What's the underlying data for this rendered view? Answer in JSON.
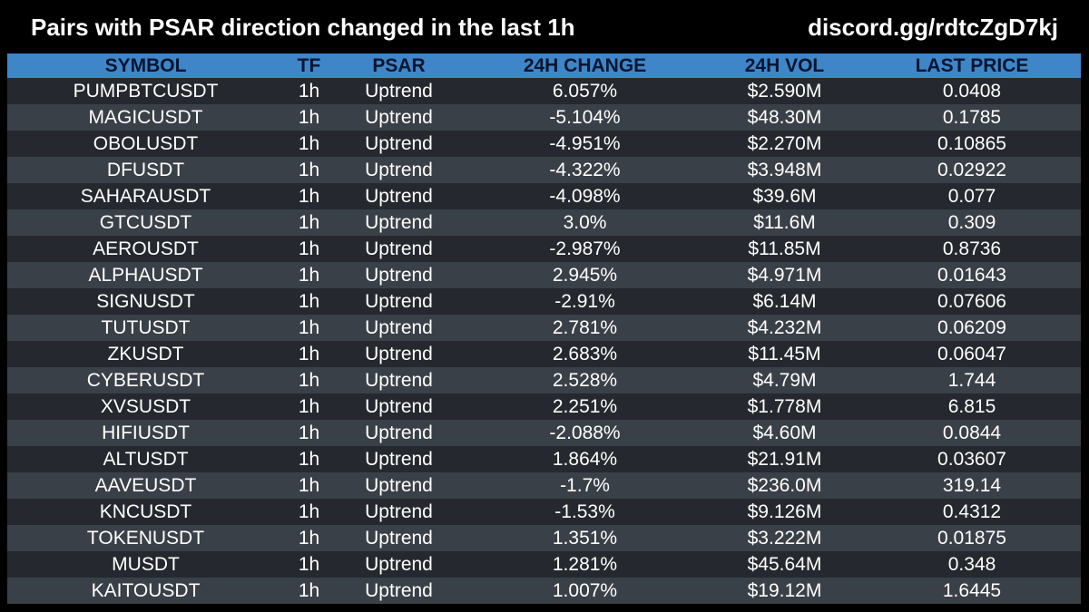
{
  "header": {
    "title": "Pairs with PSAR direction changed in the last 1h",
    "link": "discord.gg/rdtcZgD7kj"
  },
  "table": {
    "columns": [
      "SYMBOL",
      "TF",
      "PSAR",
      "24H CHANGE",
      "24H VOL",
      "LAST PRICE"
    ],
    "rows": [
      [
        "PUMPBTCUSDT",
        "1h",
        "Uptrend",
        "6.057%",
        "$2.590M",
        "0.0408"
      ],
      [
        "MAGICUSDT",
        "1h",
        "Uptrend",
        "-5.104%",
        "$48.30M",
        "0.1785"
      ],
      [
        "OBOLUSDT",
        "1h",
        "Uptrend",
        "-4.951%",
        "$2.270M",
        "0.10865"
      ],
      [
        "DFUSDT",
        "1h",
        "Uptrend",
        "-4.322%",
        "$3.948M",
        "0.02922"
      ],
      [
        "SAHARAUSDT",
        "1h",
        "Uptrend",
        "-4.098%",
        "$39.6M",
        "0.077"
      ],
      [
        "GTCUSDT",
        "1h",
        "Uptrend",
        "3.0%",
        "$11.6M",
        "0.309"
      ],
      [
        "AEROUSDT",
        "1h",
        "Uptrend",
        "-2.987%",
        "$11.85M",
        "0.8736"
      ],
      [
        "ALPHAUSDT",
        "1h",
        "Uptrend",
        "2.945%",
        "$4.971M",
        "0.01643"
      ],
      [
        "SIGNUSDT",
        "1h",
        "Uptrend",
        "-2.91%",
        "$6.14M",
        "0.07606"
      ],
      [
        "TUTUSDT",
        "1h",
        "Uptrend",
        "2.781%",
        "$4.232M",
        "0.06209"
      ],
      [
        "ZKUSDT",
        "1h",
        "Uptrend",
        "2.683%",
        "$11.45M",
        "0.06047"
      ],
      [
        "CYBERUSDT",
        "1h",
        "Uptrend",
        "2.528%",
        "$4.79M",
        "1.744"
      ],
      [
        "XVSUSDT",
        "1h",
        "Uptrend",
        "2.251%",
        "$1.778M",
        "6.815"
      ],
      [
        "HIFIUSDT",
        "1h",
        "Uptrend",
        "-2.088%",
        "$4.60M",
        "0.0844"
      ],
      [
        "ALTUSDT",
        "1h",
        "Uptrend",
        "1.864%",
        "$21.91M",
        "0.03607"
      ],
      [
        "AAVEUSDT",
        "1h",
        "Uptrend",
        "-1.7%",
        "$236.0M",
        "319.14"
      ],
      [
        "KNCUSDT",
        "1h",
        "Uptrend",
        "-1.53%",
        "$9.126M",
        "0.4312"
      ],
      [
        "TOKENUSDT",
        "1h",
        "Uptrend",
        "1.351%",
        "$3.222M",
        "0.01875"
      ],
      [
        "MUSDT",
        "1h",
        "Uptrend",
        "1.281%",
        "$45.64M",
        "0.348"
      ],
      [
        "KAITOUSDT",
        "1h",
        "Uptrend",
        "1.007%",
        "$19.12M",
        "1.6445"
      ]
    ]
  },
  "colors": {
    "background": "#000000",
    "header_row": "#3e86c8",
    "header_text": "#071530",
    "row_dark": "#25292f",
    "row_light": "#3a4047",
    "text": "#ffffff"
  }
}
